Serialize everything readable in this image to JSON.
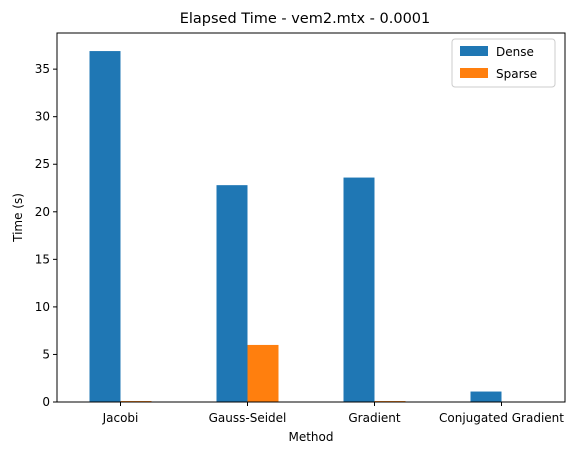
{
  "chart_data": {
    "type": "bar",
    "title": "Elapsed Time - vem2.mtx - 0.0001",
    "xlabel": "Method",
    "ylabel": "Time (s)",
    "categories": [
      "Jacobi",
      "Gauss-Seidel",
      "Gradient",
      "Conjugated Gradient"
    ],
    "series": [
      {
        "name": "Dense",
        "color": "#1f77b4",
        "values": [
          36.9,
          22.8,
          23.6,
          1.1
        ]
      },
      {
        "name": "Sparse",
        "color": "#ff7f0e",
        "values": [
          0.1,
          6.0,
          0.1,
          0.02
        ]
      }
    ],
    "ylim": [
      0,
      38.8
    ],
    "yticks": [
      0,
      5,
      10,
      15,
      20,
      25,
      30,
      35
    ],
    "grid": false,
    "legend_position": "top-right"
  }
}
